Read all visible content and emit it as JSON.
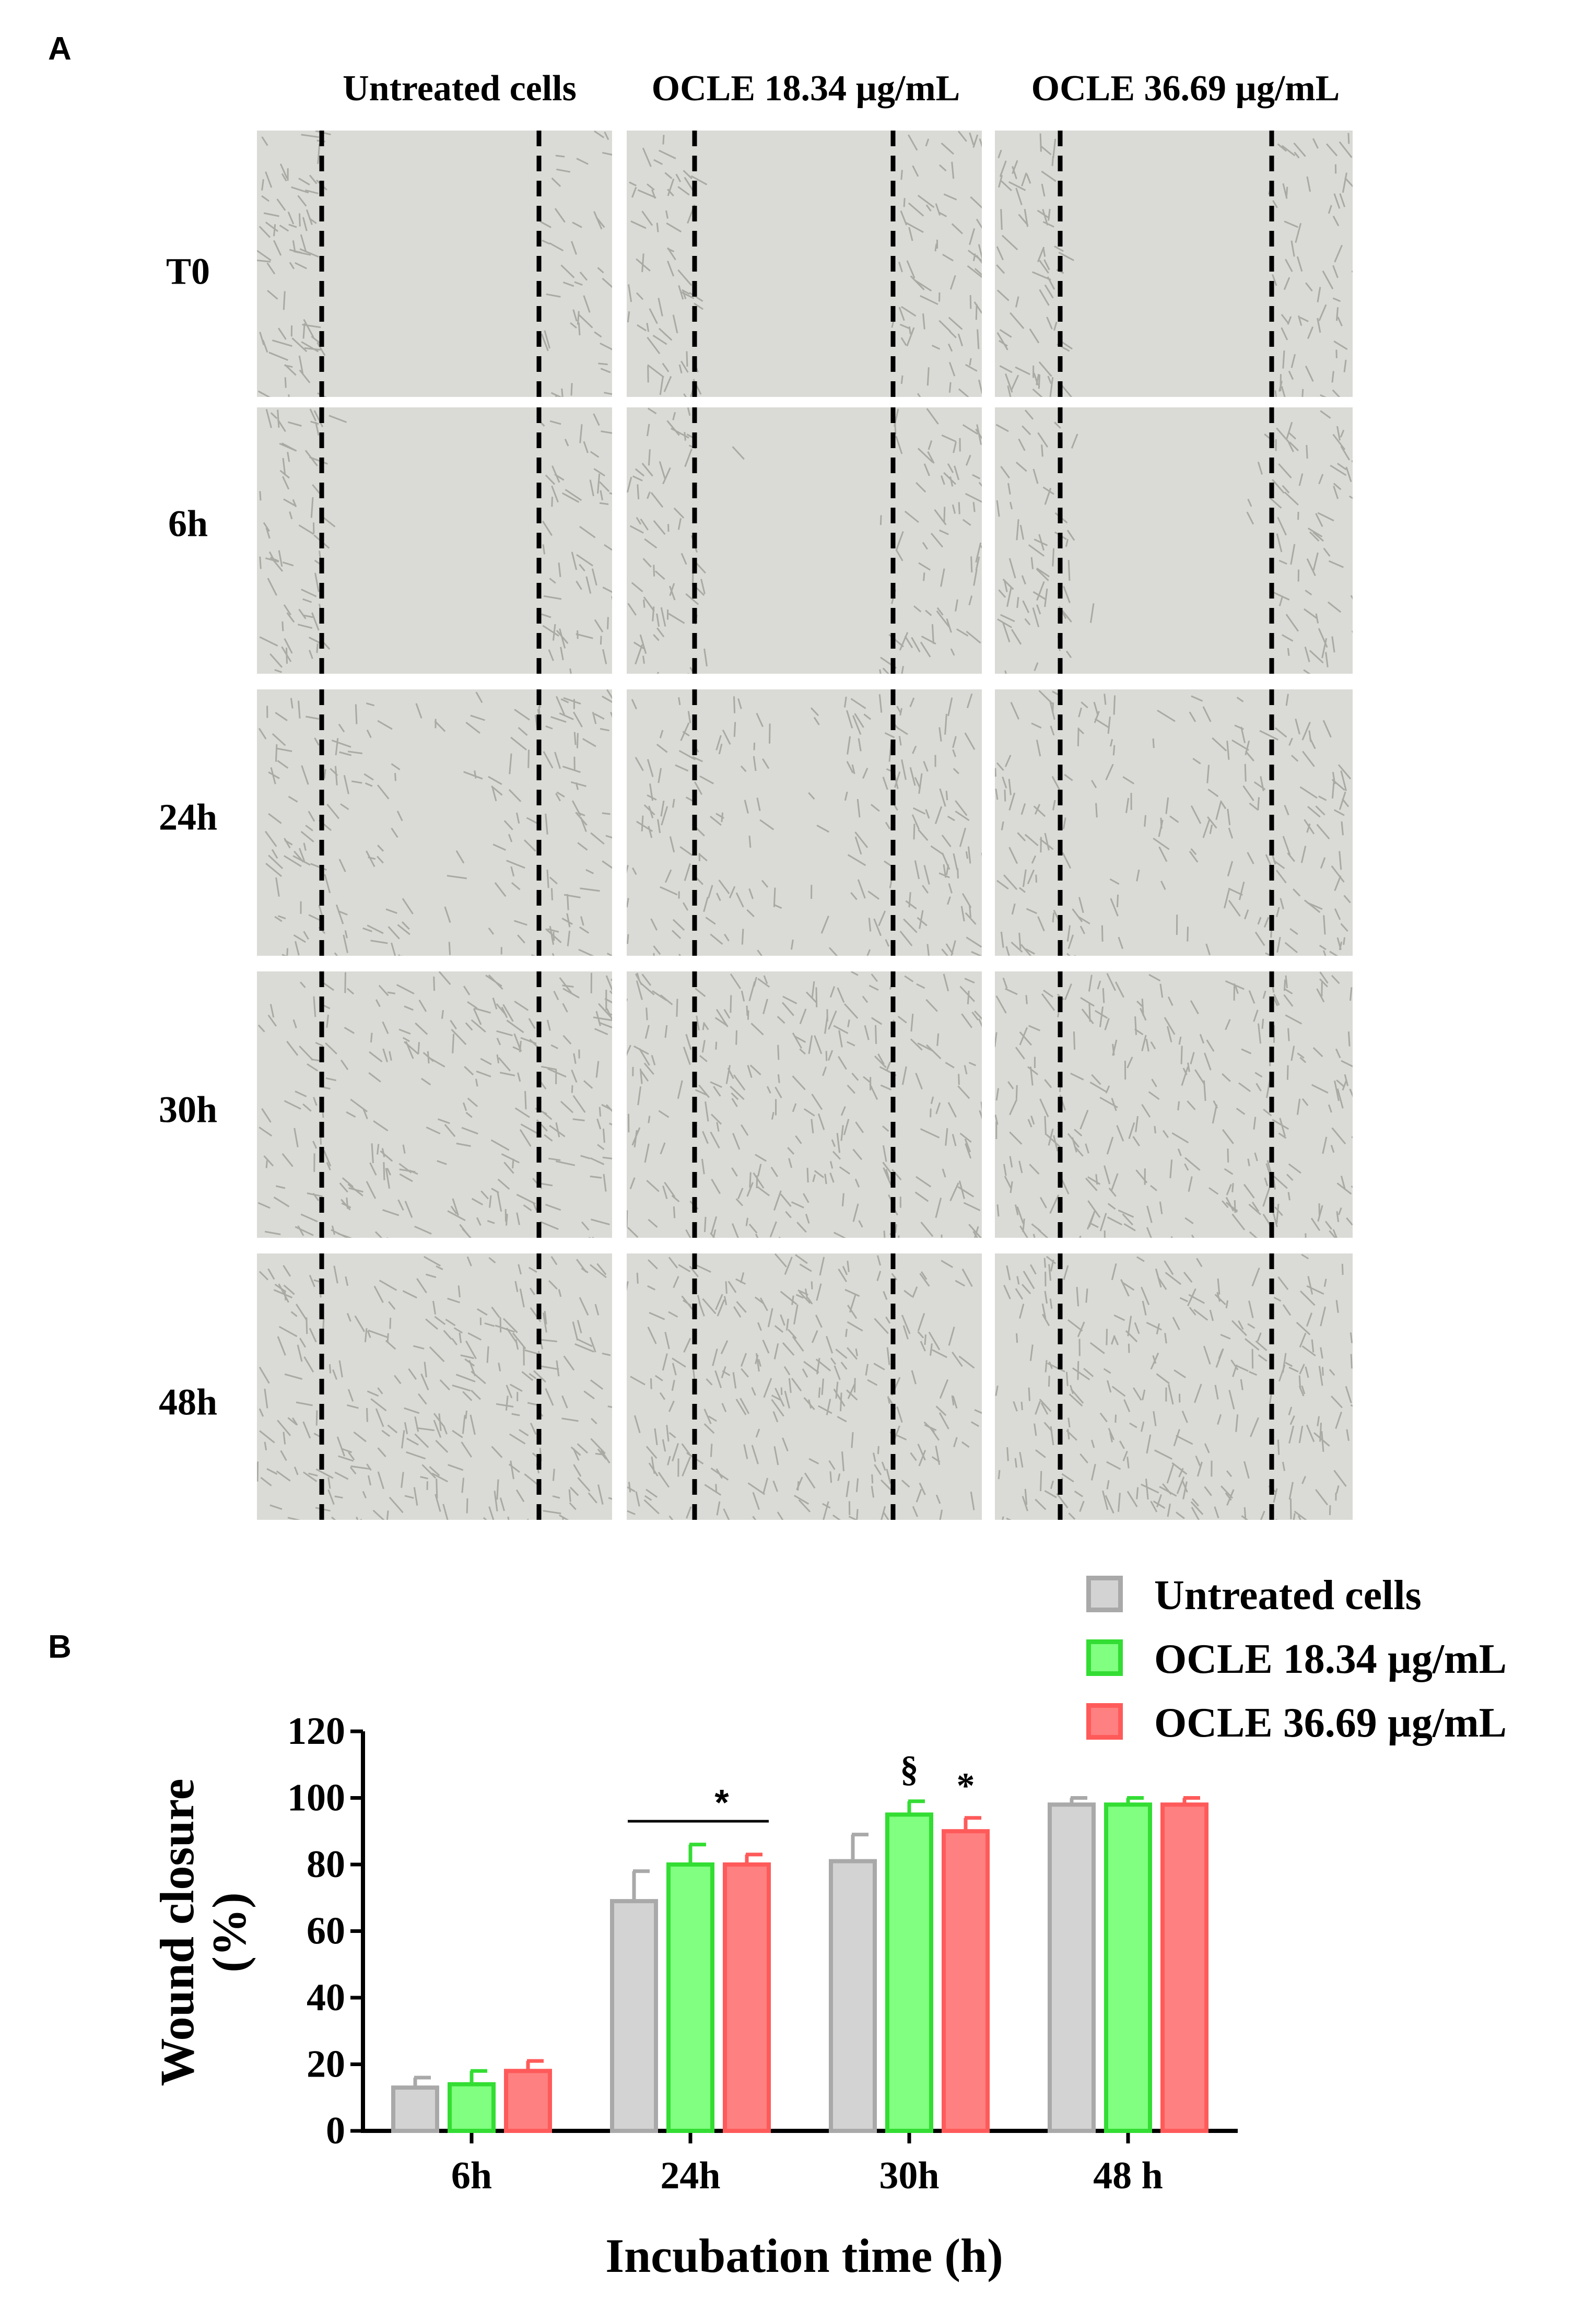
{
  "panel_a": {
    "label": "A",
    "columns": [
      "Untreated cells",
      "OCLE 18.34 µg/mL",
      "OCLE 36.69 µg/mL"
    ],
    "rows": [
      "T0",
      "6h",
      "24h",
      "30h",
      "48h"
    ]
  },
  "panel_b": {
    "label": "B"
  },
  "colors": {
    "untreated_fill": "#d3d3d3",
    "untreated_edge": "#a9a9a9",
    "ocle1834_fill": "#80ff80",
    "ocle1834_edge": "#33dd33",
    "ocle3669_fill": "#ff8080",
    "ocle3669_edge": "#ff5a5a",
    "micro_bg": "#dadad6",
    "micro_cell": "#9a9a94"
  },
  "chart_data": {
    "type": "bar",
    "title": "",
    "xlabel": "Incubation time (h)",
    "ylabel": "Wound closure (%)",
    "ylabel_lines": [
      "Wound closure",
      "(%)"
    ],
    "ylim": [
      0,
      120
    ],
    "yticks": [
      "0",
      "20",
      "40",
      "60",
      "80",
      "100",
      "120"
    ],
    "categories": [
      "6h",
      "24h",
      "30h",
      "48 h"
    ],
    "legend_position": "top-right",
    "series": [
      {
        "name": "Untreated cells",
        "values": [
          13,
          69,
          81,
          98
        ],
        "errors": [
          3,
          9,
          8,
          2
        ]
      },
      {
        "name": "OCLE 18.34 µg/mL",
        "values": [
          14,
          80,
          95,
          98
        ],
        "errors": [
          4,
          6,
          4,
          2
        ]
      },
      {
        "name": "OCLE 36.69 µg/mL",
        "values": [
          18,
          80,
          90,
          98
        ],
        "errors": [
          3,
          3,
          4,
          2
        ]
      }
    ],
    "annotations": [
      {
        "text": "*",
        "category": "24h",
        "type": "bracket",
        "y": 93
      },
      {
        "text": "§",
        "category": "30h",
        "series": 1,
        "y": 105
      },
      {
        "text": "*",
        "category": "30h",
        "series": 2,
        "y": 100
      }
    ]
  }
}
